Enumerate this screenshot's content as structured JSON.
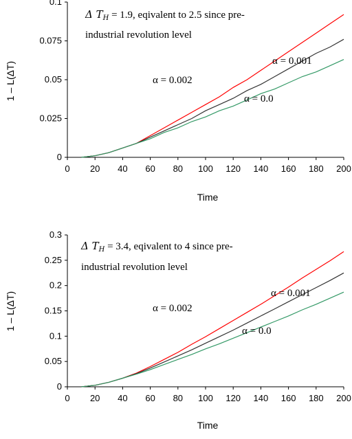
{
  "chart_data": [
    {
      "type": "line",
      "title": "",
      "xlabel": "Time",
      "ylabel": "1 – L(ΔT)",
      "xlim": [
        0,
        200
      ],
      "ylim": [
        0,
        0.1
      ],
      "xticks": [
        0,
        20,
        40,
        60,
        80,
        100,
        120,
        140,
        160,
        180,
        200
      ],
      "yticks": [
        0,
        0.025,
        0.05,
        0.075,
        0.1
      ],
      "ytick_labels": [
        "0",
        "0.025",
        "0.05",
        "0.075",
        "0.1"
      ],
      "grid": false,
      "annotation": {
        "line1_symbol": "Δ T",
        "line1_sub": "H",
        "line1_rest": " = 1.9, eqivalent to 2.5 since pre-",
        "line2": "industrial revolution level"
      },
      "series": [
        {
          "name": "α = 0.002",
          "color": "#ff0000",
          "x": [
            10,
            20,
            30,
            40,
            50,
            60,
            70,
            80,
            90,
            100,
            110,
            120,
            130,
            140,
            150,
            160,
            170,
            180,
            190,
            200
          ],
          "values": [
            0.0,
            0.001,
            0.003,
            0.006,
            0.009,
            0.014,
            0.019,
            0.024,
            0.029,
            0.034,
            0.039,
            0.045,
            0.05,
            0.056,
            0.062,
            0.068,
            0.074,
            0.08,
            0.086,
            0.092
          ]
        },
        {
          "name": "α = 0.001",
          "color": "#333333",
          "x": [
            10,
            20,
            30,
            40,
            50,
            60,
            70,
            80,
            90,
            100,
            110,
            120,
            130,
            140,
            150,
            160,
            170,
            180,
            190,
            200
          ],
          "values": [
            0.0,
            0.001,
            0.003,
            0.006,
            0.009,
            0.013,
            0.017,
            0.021,
            0.025,
            0.03,
            0.034,
            0.038,
            0.043,
            0.047,
            0.052,
            0.057,
            0.062,
            0.067,
            0.071,
            0.076
          ]
        },
        {
          "name": "α = 0.0",
          "color": "#339966",
          "x": [
            10,
            20,
            30,
            40,
            50,
            60,
            70,
            80,
            90,
            100,
            110,
            120,
            130,
            140,
            150,
            160,
            170,
            180,
            190,
            200
          ],
          "values": [
            0.0,
            0.001,
            0.003,
            0.006,
            0.009,
            0.012,
            0.016,
            0.019,
            0.023,
            0.026,
            0.03,
            0.033,
            0.037,
            0.041,
            0.044,
            0.048,
            0.052,
            0.055,
            0.059,
            0.063
          ]
        }
      ]
    },
    {
      "type": "line",
      "title": "",
      "xlabel": "Time",
      "ylabel": "1 – L(ΔT)",
      "xlim": [
        0,
        200
      ],
      "ylim": [
        0,
        0.3
      ],
      "xticks": [
        0,
        20,
        40,
        60,
        80,
        100,
        120,
        140,
        160,
        180,
        200
      ],
      "yticks": [
        0,
        0.05,
        0.1,
        0.15,
        0.2,
        0.25,
        0.3
      ],
      "ytick_labels": [
        "0",
        "0.05",
        "0.1",
        "0.15",
        "0.2",
        "0.25",
        "0.3"
      ],
      "grid": false,
      "annotation": {
        "line1_symbol": "Δ T",
        "line1_sub": "H",
        "line1_rest": " = 3.4, eqivalent to 4 since pre-",
        "line2": "industrial revolution level"
      },
      "series": [
        {
          "name": "α = 0.002",
          "color": "#ff0000",
          "x": [
            10,
            20,
            30,
            40,
            50,
            60,
            70,
            80,
            90,
            100,
            110,
            120,
            130,
            140,
            150,
            160,
            170,
            180,
            190,
            200
          ],
          "values": [
            0.0,
            0.003,
            0.009,
            0.017,
            0.027,
            0.04,
            0.054,
            0.068,
            0.084,
            0.099,
            0.115,
            0.131,
            0.147,
            0.163,
            0.18,
            0.197,
            0.215,
            0.232,
            0.249,
            0.267
          ]
        },
        {
          "name": "α = 0.001",
          "color": "#333333",
          "x": [
            10,
            20,
            30,
            40,
            50,
            60,
            70,
            80,
            90,
            100,
            110,
            120,
            130,
            140,
            150,
            160,
            170,
            180,
            190,
            200
          ],
          "values": [
            0.0,
            0.003,
            0.009,
            0.017,
            0.026,
            0.037,
            0.049,
            0.061,
            0.073,
            0.086,
            0.099,
            0.112,
            0.126,
            0.14,
            0.154,
            0.168,
            0.182,
            0.196,
            0.21,
            0.225
          ]
        },
        {
          "name": "α = 0.0",
          "color": "#339966",
          "x": [
            10,
            20,
            30,
            40,
            50,
            60,
            70,
            80,
            90,
            100,
            110,
            120,
            130,
            140,
            150,
            160,
            170,
            180,
            190,
            200
          ],
          "values": [
            0.0,
            0.003,
            0.009,
            0.017,
            0.025,
            0.034,
            0.044,
            0.054,
            0.064,
            0.075,
            0.085,
            0.096,
            0.107,
            0.118,
            0.129,
            0.14,
            0.152,
            0.163,
            0.175,
            0.187
          ]
        }
      ]
    }
  ]
}
